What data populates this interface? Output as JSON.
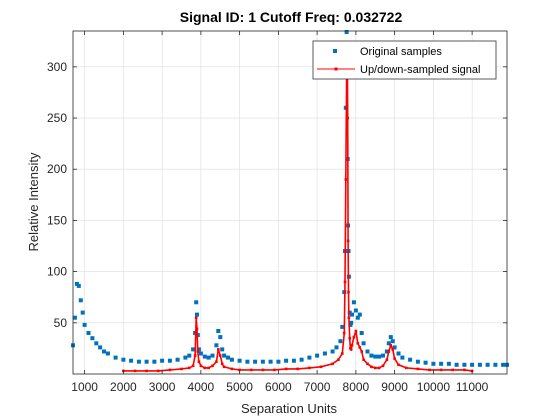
{
  "chart_data": {
    "type": "scatter",
    "title": "Signal ID: 1  Cutoff Freq: 0.032722",
    "xlabel": "Separation Units",
    "ylabel": "Relative Intensity",
    "xlim": [
      700,
      11900
    ],
    "ylim": [
      0,
      335
    ],
    "xticks": [
      1000,
      2000,
      3000,
      4000,
      5000,
      6000,
      7000,
      8000,
      9000,
      10000,
      11000
    ],
    "xtick_labels": [
      "1000",
      "2000",
      "3000",
      "4000",
      "5000",
      "6000",
      "7000",
      "8000",
      "9000",
      "10000",
      "11000"
    ],
    "yticks": [
      50,
      100,
      150,
      200,
      250,
      300
    ],
    "ytick_labels": [
      "50",
      "100",
      "150",
      "200",
      "250",
      "300"
    ],
    "grid": true,
    "legend_position": "top-right",
    "series": [
      {
        "name": "Original samples",
        "color": "#0072BD",
        "marker": "square",
        "line": false,
        "x": [
          700,
          750,
          800,
          850,
          900,
          950,
          1000,
          1100,
          1200,
          1300,
          1400,
          1500,
          1600,
          1800,
          2000,
          2200,
          2400,
          2600,
          2800,
          3000,
          3200,
          3400,
          3600,
          3700,
          3800,
          3850,
          3880,
          3900,
          3920,
          3950,
          4000,
          4100,
          4200,
          4300,
          4400,
          4450,
          4500,
          4550,
          4600,
          4700,
          4800,
          5000,
          5200,
          5400,
          5600,
          5800,
          6000,
          6200,
          6400,
          6600,
          6800,
          7000,
          7200,
          7400,
          7500,
          7600,
          7650,
          7700,
          7720,
          7740,
          7760,
          7780,
          7790,
          7800,
          7810,
          7820,
          7840,
          7860,
          7880,
          7900,
          7950,
          8000,
          8050,
          8100,
          8150,
          8200,
          8300,
          8400,
          8500,
          8600,
          8700,
          8800,
          8850,
          8900,
          8950,
          9000,
          9100,
          9200,
          9400,
          9600,
          9800,
          10000,
          10200,
          10400,
          10600,
          10800,
          11000,
          11200,
          11400,
          11600,
          11800,
          11900
        ],
        "y": [
          28,
          55,
          88,
          86,
          72,
          60,
          48,
          40,
          35,
          30,
          26,
          22,
          20,
          16,
          14,
          13,
          12,
          12,
          12,
          13,
          13,
          14,
          16,
          18,
          24,
          40,
          70,
          58,
          38,
          24,
          20,
          17,
          16,
          18,
          28,
          42,
          36,
          24,
          18,
          16,
          14,
          13,
          12,
          12,
          12,
          12,
          12,
          13,
          13,
          14,
          16,
          18,
          20,
          22,
          26,
          32,
          46,
          80,
          120,
          260,
          334,
          300,
          210,
          145,
          120,
          95,
          60,
          48,
          50,
          58,
          70,
          62,
          55,
          58,
          40,
          30,
          22,
          18,
          17,
          17,
          18,
          22,
          30,
          36,
          32,
          26,
          20,
          16,
          14,
          12,
          11,
          10,
          10,
          10,
          9,
          9,
          9,
          9,
          9,
          9,
          9,
          9
        ]
      },
      {
        "name": "Up/down-sampled signal",
        "color": "#FF0000",
        "marker": "dot",
        "line": true,
        "x": [
          2000,
          2300,
          2600,
          2900,
          3200,
          3500,
          3700,
          3800,
          3850,
          3880,
          3900,
          3920,
          3950,
          4000,
          4100,
          4200,
          4300,
          4400,
          4450,
          4500,
          4550,
          4600,
          4800,
          5000,
          5300,
          5600,
          5900,
          6200,
          6500,
          6800,
          7100,
          7400,
          7550,
          7650,
          7700,
          7720,
          7740,
          7760,
          7780,
          7790,
          7800,
          7810,
          7820,
          7840,
          7860,
          7880,
          7900,
          7950,
          8000,
          8050,
          8100,
          8150,
          8200,
          8300,
          8400,
          8500,
          8600,
          8700,
          8800,
          8850,
          8900,
          8950,
          9000,
          9100,
          9300,
          9600,
          9900,
          10200,
          10500,
          10800,
          11000
        ],
        "y": [
          3,
          3,
          3,
          3,
          4,
          5,
          6,
          8,
          18,
          55,
          44,
          22,
          12,
          8,
          6,
          6,
          8,
          12,
          24,
          18,
          10,
          7,
          5,
          4,
          4,
          4,
          4,
          5,
          5,
          6,
          7,
          10,
          14,
          20,
          40,
          90,
          190,
          290,
          320,
          250,
          130,
          80,
          55,
          35,
          25,
          24,
          28,
          36,
          42,
          30,
          26,
          22,
          14,
          10,
          7,
          6,
          6,
          8,
          14,
          22,
          28,
          24,
          15,
          9,
          6,
          5,
          4,
          4,
          4,
          4,
          3
        ]
      }
    ]
  }
}
